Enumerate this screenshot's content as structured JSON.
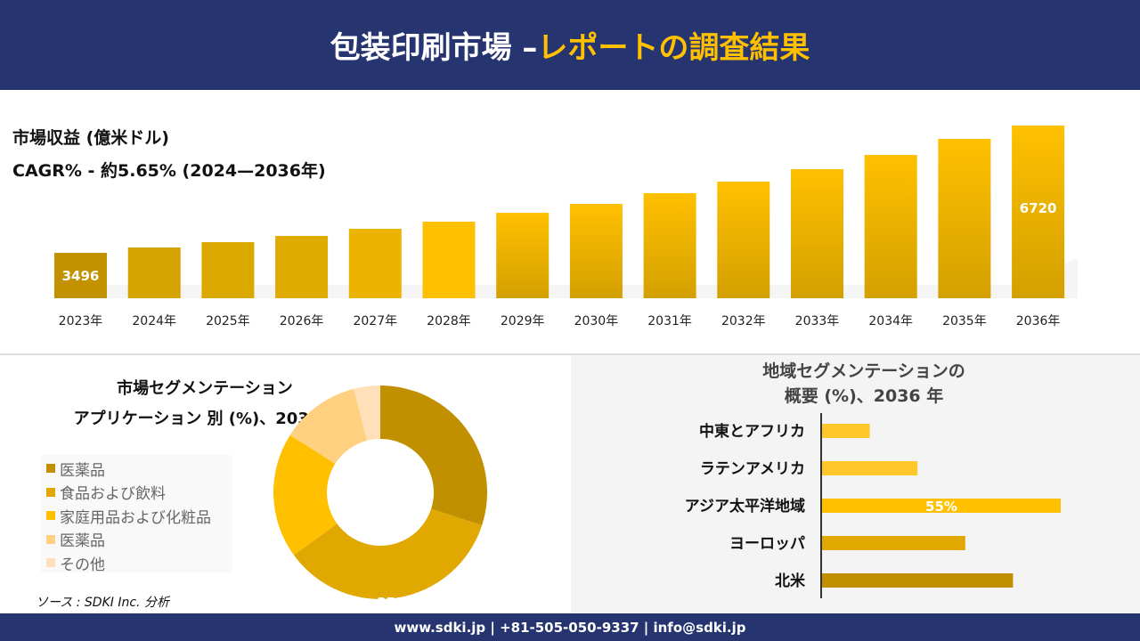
{
  "header": {
    "title_main": "包装印刷市場 –",
    "title_accent": "レポートの調査結果"
  },
  "colors": {
    "navy": "#263470",
    "accent": "#ffc000"
  },
  "chart_data": [
    {
      "type": "bar",
      "title": "市場収益 (億米ドル)",
      "subtitle": "CAGR% - 約5.65% (2024—2036年)",
      "categories": [
        "2023年",
        "2024年",
        "2025年",
        "2026年",
        "2027年",
        "2028年",
        "2029年",
        "2030年",
        "2031年",
        "2032年",
        "2033年",
        "2034年",
        "2035年",
        "2036年"
      ],
      "values": [
        3496,
        3631,
        3767,
        3924,
        4105,
        4285,
        4511,
        4736,
        5007,
        5300,
        5615,
        5976,
        6382,
        6720
      ],
      "data_labels": {
        "0": "3496",
        "13": "6720"
      }
    },
    {
      "type": "pie",
      "title_line1": "市場セグメンテーション",
      "title_line2": "アプリケーション 別 (%)、2036年",
      "labels": [
        "医薬品",
        "食品および飲料",
        "家庭用品および化粧品",
        "医薬品",
        "その他"
      ],
      "values": [
        30,
        35,
        19,
        12,
        4
      ],
      "colors": [
        "#c09000",
        "#e0a800",
        "#ffc000",
        "#ffd080",
        "#ffe0b8"
      ],
      "data_labels": {
        "1": "35%"
      },
      "legend": "left"
    },
    {
      "type": "bar",
      "orientation": "horizontal",
      "title_line1": "地域セグメンテーションの",
      "title_line2": "概要 (%)、2036 年",
      "categories": [
        "中東とアフリカ",
        "ラテンアメリカ",
        "アジア太平洋地域",
        "ヨーロッパ",
        "北米"
      ],
      "values": [
        11,
        22,
        55,
        33,
        44
      ],
      "colors": [
        "#ffc72a",
        "#ffc72a",
        "#ffc000",
        "#e0a800",
        "#c09000"
      ],
      "data_labels": {
        "2": "55%"
      }
    }
  ],
  "source": "ソース : SDKI Inc. 分析",
  "footer": "www.sdki.jp | +81-505-050-9337 | info@sdki.jp"
}
